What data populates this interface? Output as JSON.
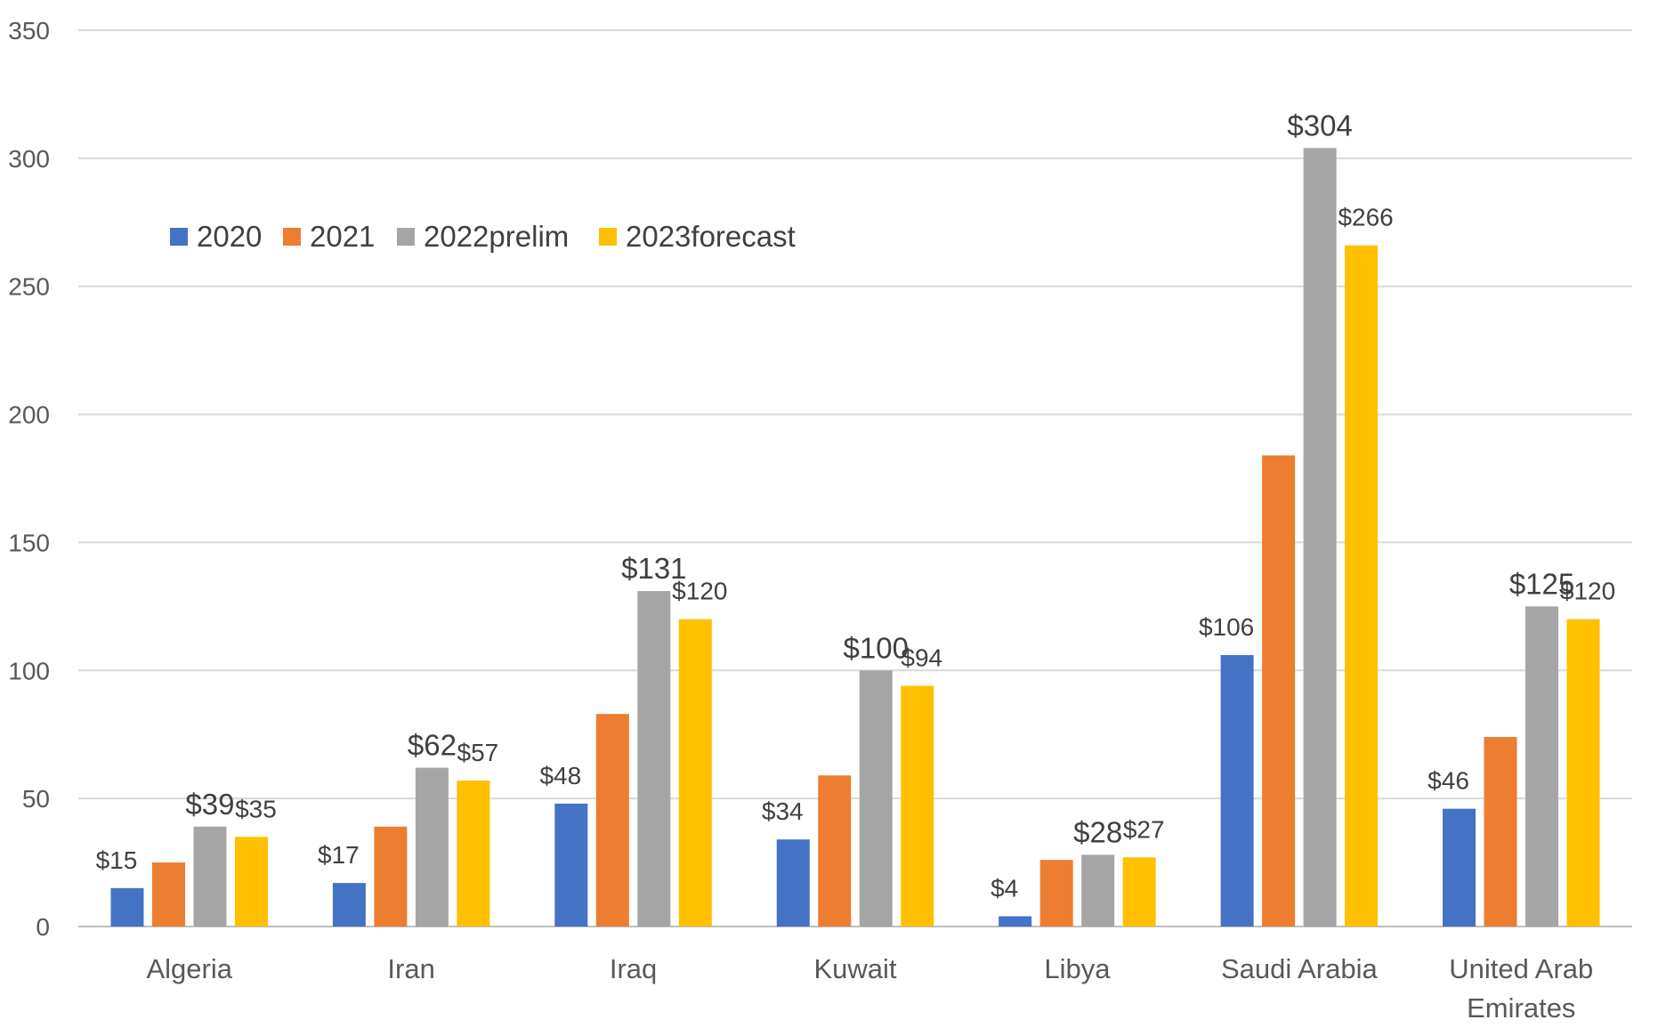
{
  "chart_data": {
    "type": "bar",
    "categories": [
      "Algeria",
      "Iran",
      "Iraq",
      "Kuwait",
      "Libya",
      "Saudi Arabia",
      "United Arab Emirates"
    ],
    "category_lines": [
      [
        "Algeria"
      ],
      [
        "Iran"
      ],
      [
        "Iraq"
      ],
      [
        "Kuwait"
      ],
      [
        "Libya"
      ],
      [
        "Saudi Arabia"
      ],
      [
        "United Arab",
        "Emirates"
      ]
    ],
    "series": [
      {
        "name": "2020",
        "color": "#4472c4",
        "values": [
          15,
          17,
          48,
          34,
          4,
          106,
          46
        ],
        "labels": [
          "$15",
          "$17",
          "$48",
          "$34",
          "$4",
          "$106",
          "$46"
        ]
      },
      {
        "name": "2021",
        "color": "#ed7d31",
        "values": [
          25,
          39,
          83,
          59,
          26,
          184,
          74
        ],
        "labels": []
      },
      {
        "name": "2022prelim",
        "color": "#a5a5a5",
        "values": [
          39,
          62,
          131,
          100,
          28,
          304,
          125
        ],
        "labels": [
          "$39",
          "$62",
          "$131",
          "$100",
          "$28",
          "$304",
          "$125"
        ]
      },
      {
        "name": "2023forecast",
        "color": "#ffc000",
        "values": [
          35,
          57,
          120,
          94,
          27,
          266,
          120
        ],
        "labels": [
          "$35",
          "$57",
          "$120",
          "$94",
          "$27",
          "$266",
          "$120"
        ]
      }
    ],
    "yticks": [
      0,
      50,
      100,
      150,
      200,
      250,
      300,
      350
    ],
    "ylim": [
      0,
      350
    ],
    "grid": true,
    "legend_position": "top-left",
    "title": "",
    "xlabel": "",
    "ylabel": ""
  }
}
